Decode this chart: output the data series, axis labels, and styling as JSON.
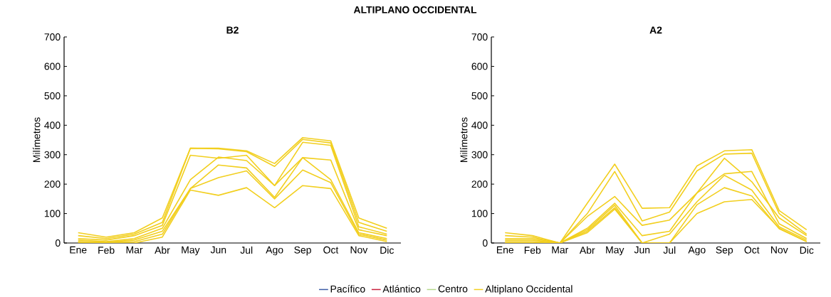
{
  "chart_data": [
    {
      "type": "line",
      "title": "B2",
      "ylabel": "Milímetros",
      "annotations": [
        "ALTIPLANO OCCIDENTAL"
      ],
      "categories": [
        "Ene",
        "Feb",
        "Mar",
        "Abr",
        "May",
        "Jun",
        "Jul",
        "Ago",
        "Sep",
        "Oct",
        "Nov",
        "Dic"
      ],
      "ylim": [
        0,
        700
      ],
      "yticks": [
        0,
        100,
        200,
        300,
        400,
        500,
        600,
        700
      ],
      "grid": false,
      "legend": "bottom",
      "marker": "none",
      "line_style": "solid",
      "series": [
        {
          "name": "Pacífico",
          "color": "#3b5ba5",
          "values": [
            null,
            null,
            null,
            null,
            null,
            null,
            null,
            null,
            null,
            null,
            null,
            null
          ]
        },
        {
          "name": "Atlántico",
          "color": "#c8203c",
          "values": [
            null,
            null,
            null,
            null,
            null,
            null,
            null,
            null,
            null,
            null,
            null,
            null
          ]
        },
        {
          "name": "Centro",
          "color": "#b5d88a",
          "values": [
            null,
            null,
            null,
            null,
            null,
            null,
            null,
            null,
            null,
            null,
            null,
            null
          ]
        },
        {
          "name": "Altiplano Occidental",
          "color": "#f2cf1f",
          "values": [
            35,
            20,
            35,
            85,
            322,
            322,
            313,
            270,
            358,
            347,
            85,
            50
          ]
        },
        {
          "color": "#f2cf1f",
          "values": [
            25,
            15,
            30,
            70,
            322,
            320,
            310,
            260,
            352,
            340,
            70,
            40
          ]
        },
        {
          "color": "#f2cf1f",
          "values": [
            15,
            10,
            25,
            60,
            298,
            288,
            298,
            195,
            342,
            332,
            55,
            30
          ]
        },
        {
          "color": "#f2cf1f",
          "values": [
            10,
            5,
            15,
            50,
            215,
            292,
            280,
            195,
            290,
            282,
            45,
            25
          ]
        },
        {
          "color": "#f2cf1f",
          "values": [
            5,
            3,
            10,
            40,
            185,
            265,
            255,
            155,
            290,
            215,
            35,
            15
          ]
        },
        {
          "color": "#f2cf1f",
          "values": [
            3,
            2,
            5,
            30,
            185,
            222,
            245,
            150,
            248,
            205,
            30,
            10
          ]
        },
        {
          "color": "#f2cf1f",
          "values": [
            0,
            0,
            0,
            20,
            180,
            162,
            188,
            120,
            195,
            185,
            25,
            5
          ]
        }
      ]
    },
    {
      "type": "line",
      "title": "A2",
      "ylabel": "Milímetros",
      "categories": [
        "Ene",
        "Feb",
        "Mar",
        "Abr",
        "May",
        "Jun",
        "Jul",
        "Ago",
        "Sep",
        "Oct",
        "Nov",
        "Dic"
      ],
      "ylim": [
        0,
        700
      ],
      "yticks": [
        0,
        100,
        200,
        300,
        400,
        500,
        600,
        700
      ],
      "grid": false,
      "marker": "none",
      "line_style": "solid",
      "series": [
        {
          "color": "#f2cf1f",
          "values": [
            35,
            25,
            0,
            135,
            268,
            118,
            120,
            262,
            313,
            317,
            110,
            45
          ]
        },
        {
          "color": "#f2cf1f",
          "values": [
            25,
            20,
            0,
            100,
            243,
            75,
            105,
            245,
            302,
            305,
            100,
            30
          ]
        },
        {
          "color": "#f2cf1f",
          "values": [
            15,
            15,
            0,
            90,
            158,
            60,
            78,
            170,
            288,
            208,
            85,
            25
          ]
        },
        {
          "color": "#f2cf1f",
          "values": [
            10,
            10,
            0,
            50,
            135,
            25,
            40,
            170,
            235,
            243,
            65,
            15
          ]
        },
        {
          "color": "#f2cf1f",
          "values": [
            5,
            5,
            0,
            45,
            128,
            0,
            30,
            140,
            230,
            180,
            55,
            10
          ]
        },
        {
          "color": "#f2cf1f",
          "values": [
            0,
            0,
            0,
            40,
            120,
            0,
            0,
            130,
            188,
            160,
            48,
            5
          ]
        },
        {
          "color": "#f2cf1f",
          "values": [
            0,
            0,
            0,
            35,
            115,
            0,
            0,
            100,
            140,
            148,
            50,
            5
          ]
        }
      ]
    }
  ]
}
